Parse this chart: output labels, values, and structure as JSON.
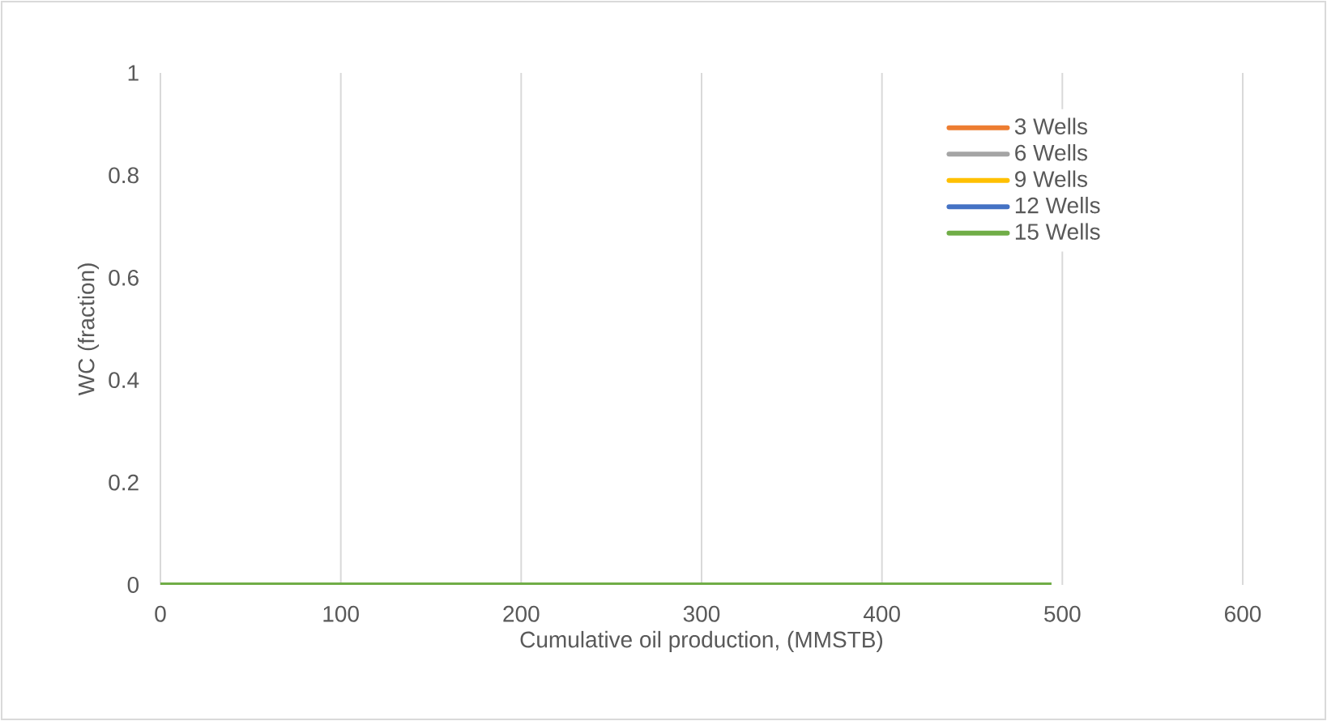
{
  "chart_data": {
    "type": "line",
    "xlabel": "Cumulative oil production, (MMSTB)",
    "ylabel": "WC (fraction)",
    "xlim": [
      0,
      600
    ],
    "xticks": [
      0,
      100,
      200,
      300,
      400,
      500,
      600
    ],
    "ylim": [
      0,
      1
    ],
    "yticks": [
      0,
      0.2,
      0.4,
      0.6,
      0.8,
      1
    ],
    "grid": "x",
    "legend": "top right",
    "marker": "none",
    "line_style": "solid",
    "series": [
      {
        "name": "3 Wells",
        "color": "#ed7d31"
      },
      {
        "name": "6 Wells",
        "color": "#a5a5a5"
      },
      {
        "name": "9 Wells",
        "color": "#ffc000"
      },
      {
        "name": "12 Wells",
        "color": "#4472c4"
      },
      {
        "name": "15 Wells",
        "color": "#70ad47",
        "x": [
          0,
          494
        ],
        "values": [
          0,
          0
        ]
      }
    ]
  }
}
